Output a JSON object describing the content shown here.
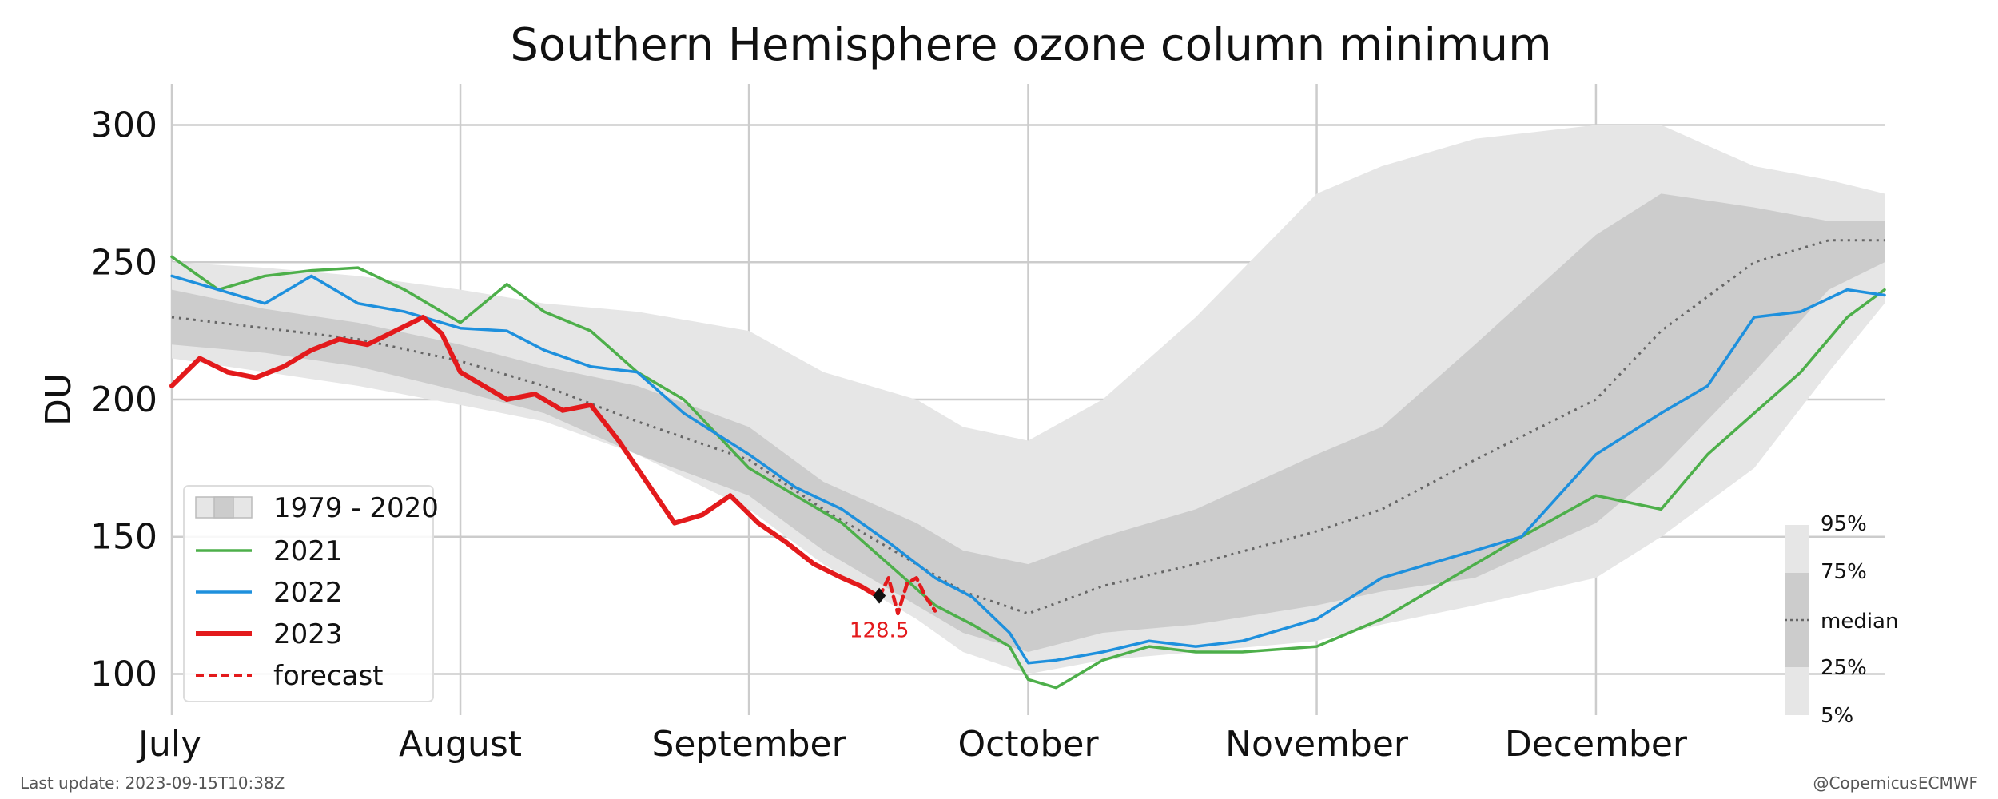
{
  "chart_data": {
    "type": "line",
    "title": "Southern Hemisphere ozone column minimum",
    "ylabel": "DU",
    "xlabel": "",
    "ylim": [
      85,
      315
    ],
    "xlim": [
      0,
      184
    ],
    "yticks": [
      100,
      150,
      200,
      250,
      300
    ],
    "month_ticks": [
      {
        "day": 0,
        "label": "July"
      },
      {
        "day": 31,
        "label": "August"
      },
      {
        "day": 62,
        "label": "September"
      },
      {
        "day": 92,
        "label": "October"
      },
      {
        "day": 123,
        "label": "November"
      },
      {
        "day": 153,
        "label": "December"
      }
    ],
    "grid": true,
    "climatology": {
      "name": "1979 - 2020",
      "x": [
        0,
        10,
        20,
        31,
        40,
        50,
        62,
        70,
        80,
        85,
        92,
        100,
        110,
        123,
        130,
        140,
        153,
        160,
        170,
        178,
        184
      ],
      "p5": [
        215,
        210,
        205,
        198,
        192,
        180,
        160,
        140,
        120,
        108,
        100,
        105,
        108,
        112,
        118,
        125,
        135,
        150,
        175,
        210,
        235
      ],
      "p25": [
        220,
        217,
        212,
        203,
        195,
        180,
        165,
        145,
        125,
        115,
        108,
        115,
        118,
        125,
        130,
        135,
        155,
        175,
        210,
        240,
        250
      ],
      "p75": [
        240,
        233,
        228,
        220,
        212,
        205,
        190,
        170,
        155,
        145,
        140,
        150,
        160,
        180,
        190,
        220,
        260,
        275,
        270,
        265,
        265
      ],
      "p95": [
        250,
        248,
        245,
        240,
        235,
        232,
        225,
        210,
        200,
        190,
        185,
        200,
        230,
        275,
        285,
        295,
        300,
        300,
        285,
        280,
        275
      ],
      "median": [
        230,
        226,
        222,
        214,
        205,
        192,
        178,
        160,
        140,
        130,
        122,
        132,
        140,
        152,
        160,
        178,
        200,
        225,
        250,
        258,
        258
      ]
    },
    "series": [
      {
        "name": "2021",
        "color": "#4daf4a",
        "x": [
          0,
          5,
          10,
          15,
          20,
          25,
          31,
          36,
          40,
          45,
          50,
          55,
          62,
          67,
          72,
          77,
          82,
          86,
          90,
          92,
          95,
          100,
          105,
          110,
          115,
          123,
          130,
          135,
          140,
          145,
          153,
          160,
          165,
          170,
          175,
          180,
          184
        ],
        "values": [
          252,
          240,
          245,
          247,
          248,
          240,
          228,
          242,
          232,
          225,
          210,
          200,
          175,
          165,
          155,
          140,
          125,
          118,
          110,
          98,
          95,
          105,
          110,
          108,
          108,
          110,
          120,
          130,
          140,
          150,
          165,
          160,
          180,
          195,
          210,
          230,
          240
        ]
      },
      {
        "name": "2022",
        "color": "#1e90dd",
        "x": [
          0,
          5,
          10,
          15,
          20,
          25,
          31,
          36,
          40,
          45,
          50,
          55,
          62,
          67,
          72,
          77,
          82,
          86,
          90,
          92,
          95,
          100,
          105,
          110,
          115,
          123,
          130,
          135,
          140,
          145,
          153,
          160,
          165,
          170,
          175,
          180,
          184
        ],
        "values": [
          245,
          240,
          235,
          245,
          235,
          232,
          226,
          225,
          218,
          212,
          210,
          195,
          180,
          168,
          160,
          148,
          135,
          128,
          115,
          104,
          105,
          108,
          112,
          110,
          112,
          120,
          135,
          140,
          145,
          150,
          180,
          195,
          205,
          230,
          232,
          240,
          238
        ]
      },
      {
        "name": "2023",
        "color": "#e31a1c",
        "x": [
          0,
          3,
          6,
          9,
          12,
          15,
          18,
          21,
          24,
          27,
          29,
          31,
          33,
          36,
          39,
          42,
          45,
          48,
          51,
          54,
          57,
          60,
          63,
          66,
          69,
          72,
          74,
          76
        ],
        "values": [
          205,
          215,
          210,
          208,
          212,
          218,
          222,
          220,
          225,
          230,
          224,
          210,
          206,
          200,
          202,
          196,
          198,
          185,
          170,
          155,
          158,
          165,
          155,
          148,
          140,
          135,
          132,
          128
        ]
      },
      {
        "name": "forecast",
        "color": "#e31a1c",
        "x": [
          76,
          77,
          78,
          79,
          80,
          81,
          82
        ],
        "values": [
          128,
          135,
          122,
          133,
          135,
          128,
          123
        ]
      }
    ],
    "annotation": {
      "label": "128.5",
      "day": 76,
      "value": 128.5
    },
    "percentile_legend": [
      "95%",
      "75%",
      "median",
      "25%",
      "5%"
    ],
    "colors": {
      "p5_p95": "#e6e6e6",
      "p25_p75": "#cccccc",
      "median": "#666666",
      "grid": "#cccccc"
    }
  },
  "footer": {
    "last_update": "Last update: 2023-09-15T10:38Z",
    "credit": "@CopernicusECMWF"
  }
}
